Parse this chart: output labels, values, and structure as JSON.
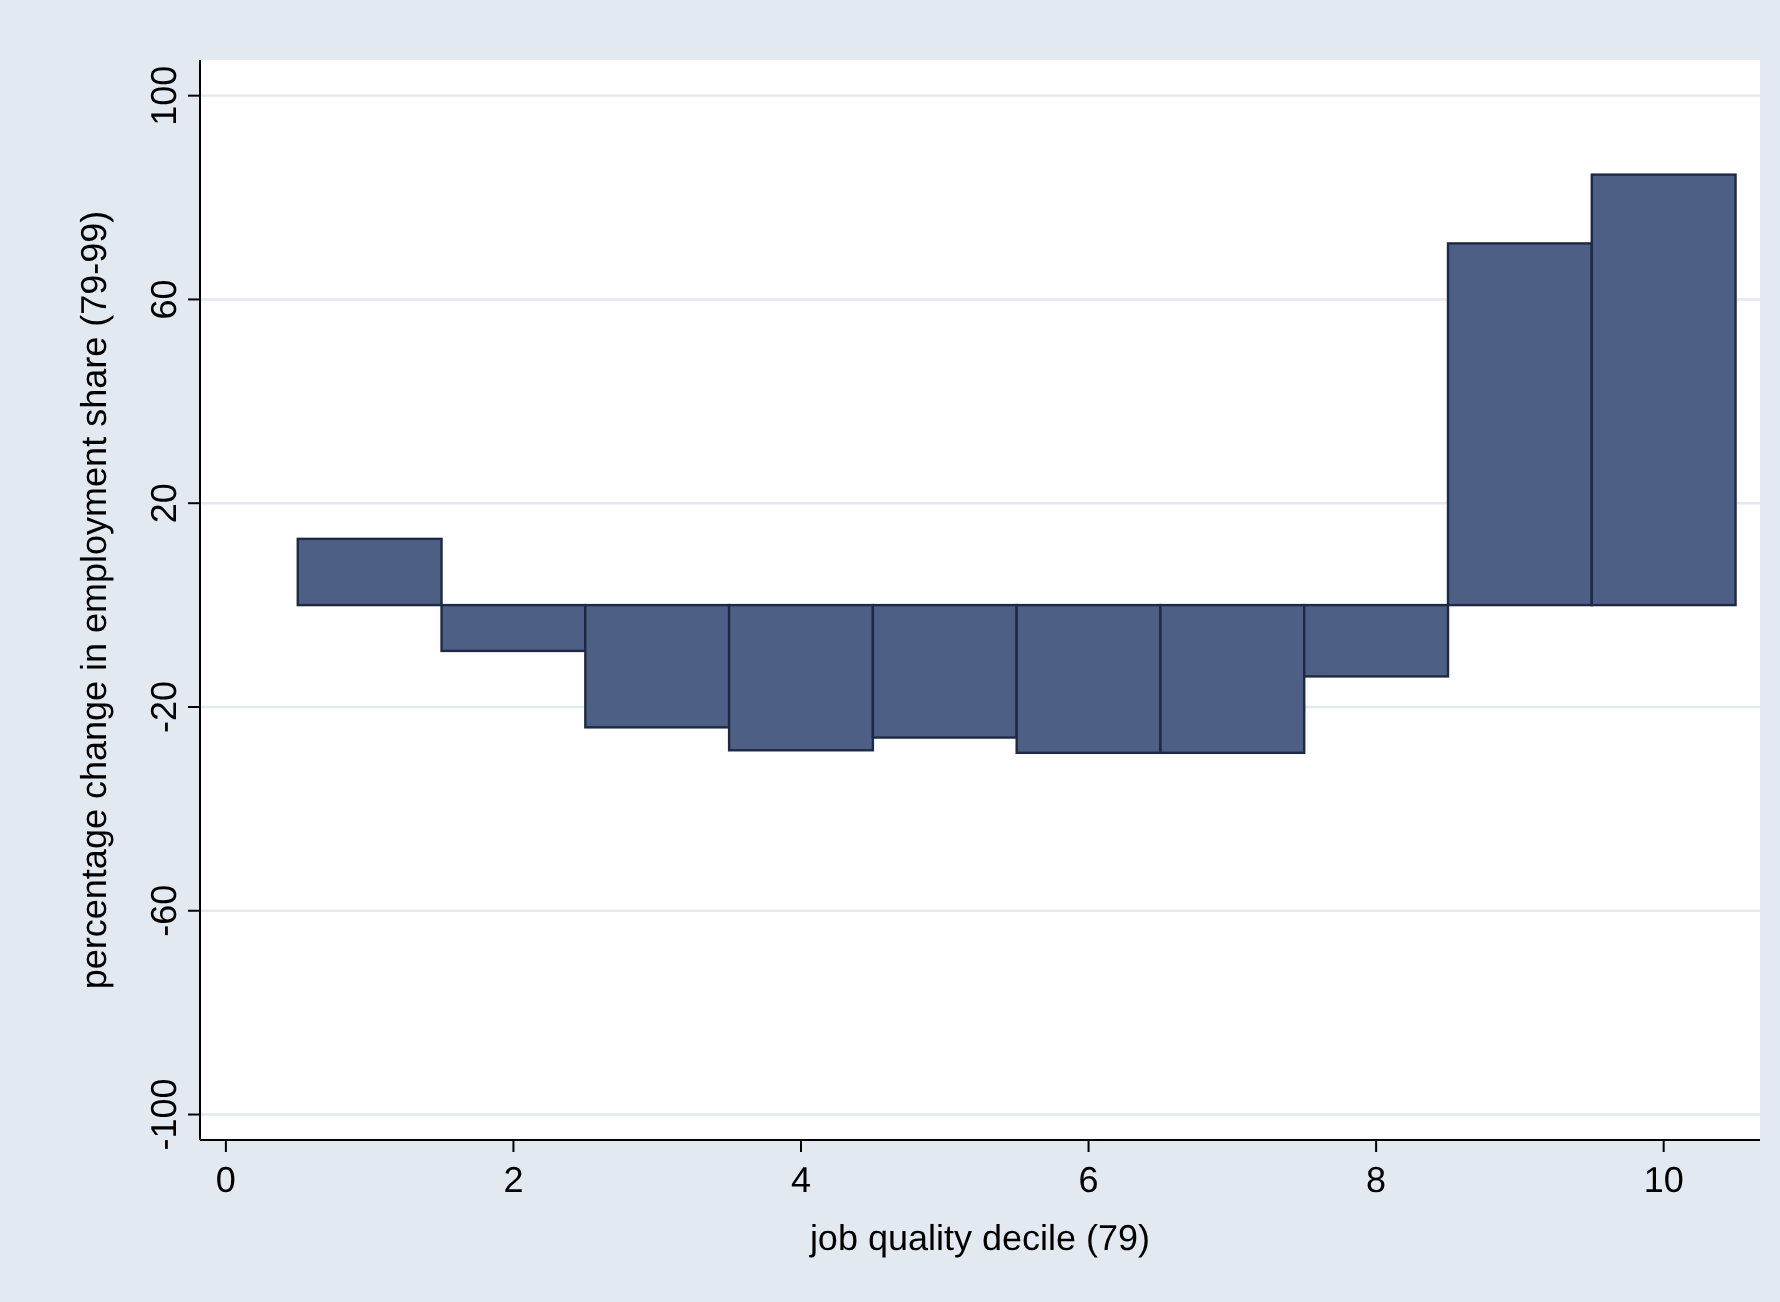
{
  "chart_data": {
    "type": "bar",
    "xlabel": "job quality decile (79)",
    "ylabel": "percentage change in employment share (79-99)",
    "x": [
      1,
      2,
      3,
      4,
      5,
      6,
      7,
      8,
      9,
      10
    ],
    "values": [
      13,
      -9,
      -24,
      -28.5,
      -26,
      -29,
      -29,
      -14,
      71,
      84.5
    ],
    "color": "#4e5f86",
    "xlim": [
      -0.18,
      10.67
    ],
    "xticks": [
      0,
      2,
      4,
      6,
      8,
      10
    ],
    "ylim": [
      -105,
      107
    ],
    "yticks": [
      -100,
      -60,
      -20,
      20,
      60,
      100
    ],
    "grid": "y"
  }
}
